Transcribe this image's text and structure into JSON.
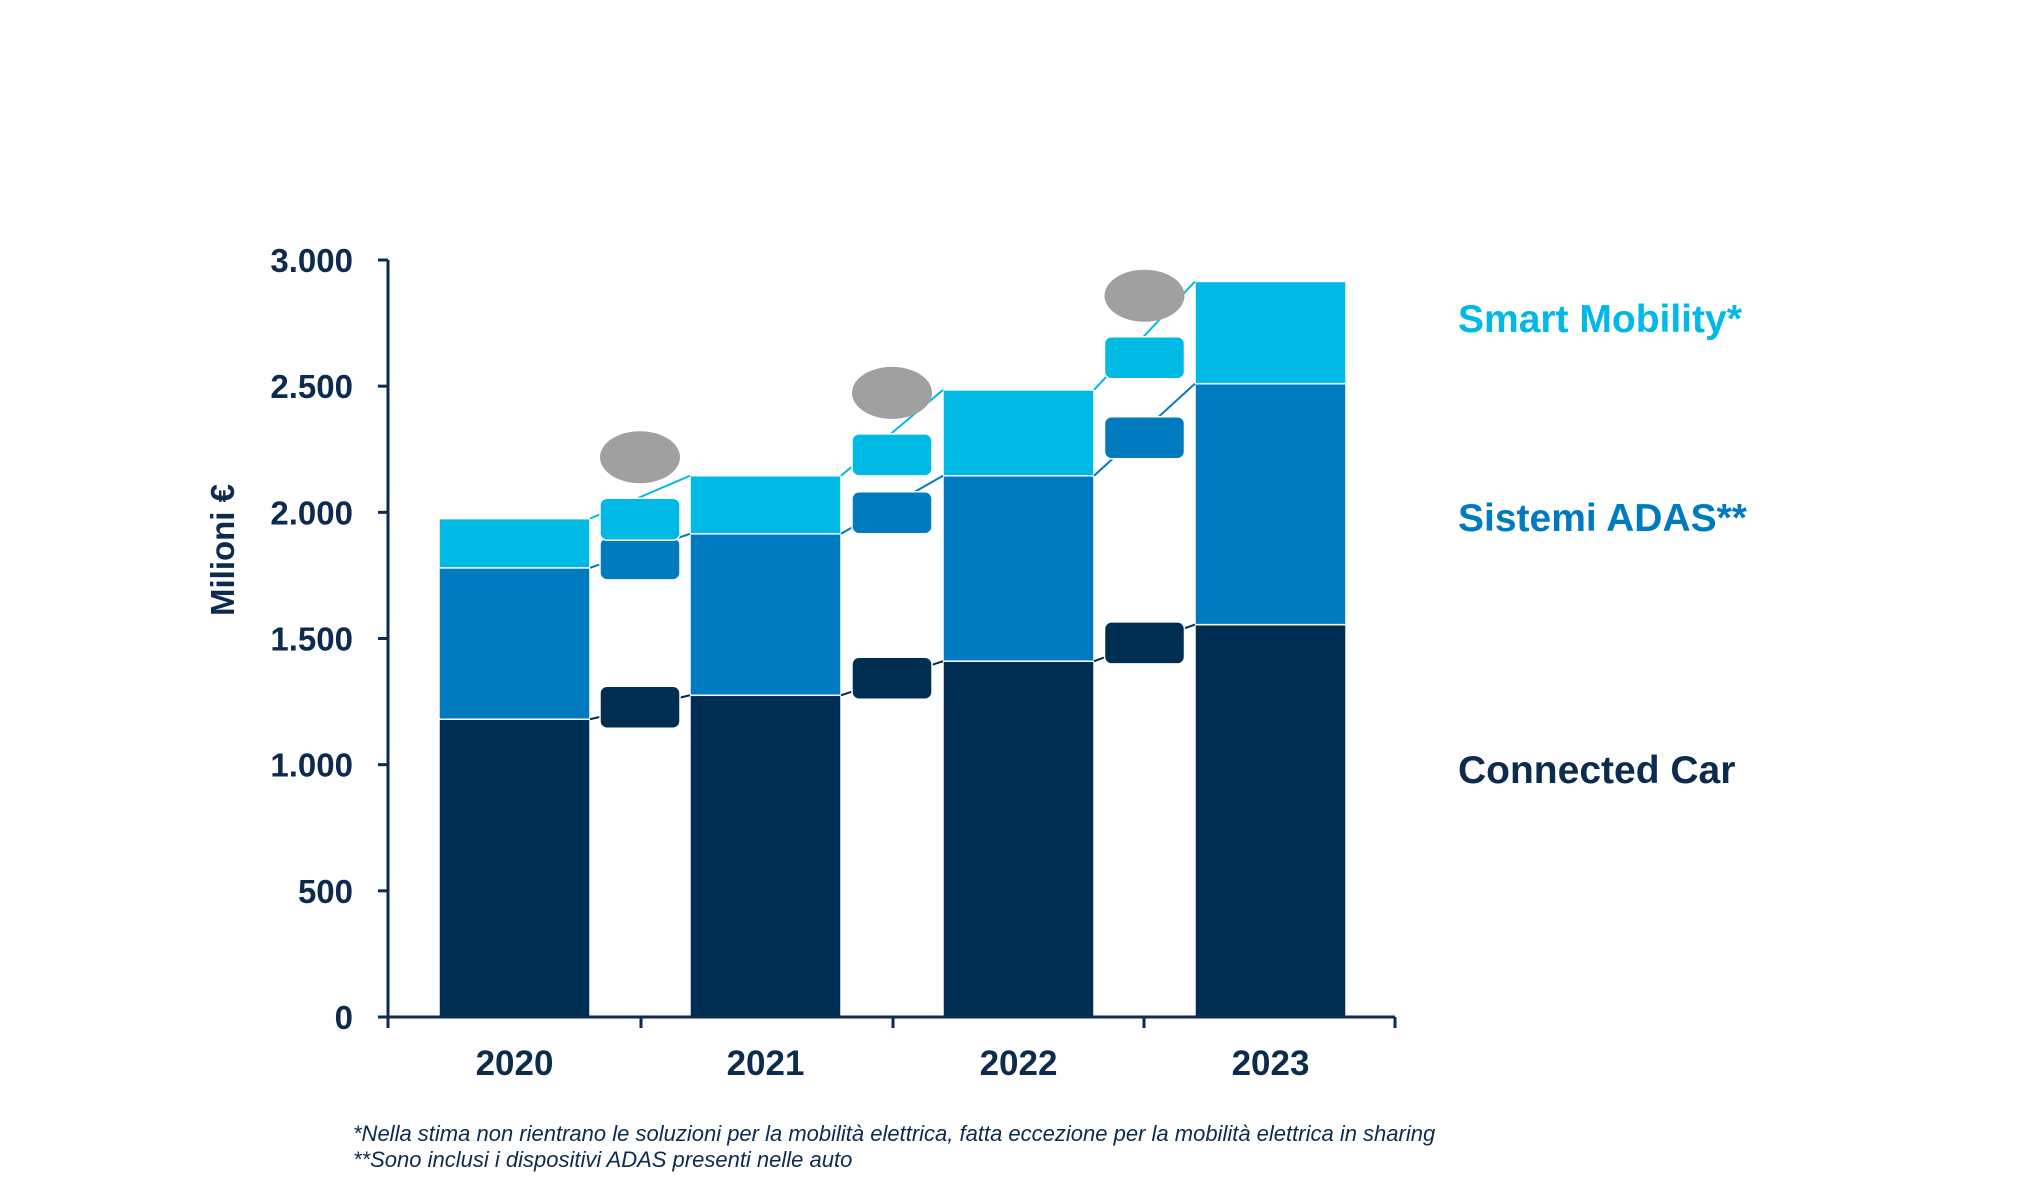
{
  "chart_data": {
    "type": "bar",
    "stacked": true,
    "categories": [
      "2020",
      "2021",
      "2022",
      "2023"
    ],
    "series": [
      {
        "name": "Connected Car",
        "color": "#002d52",
        "values": [
          1180,
          1275,
          1410,
          1555
        ]
      },
      {
        "name": "Sistemi ADAS**",
        "color": "#007bbf",
        "values": [
          600,
          640,
          735,
          955
        ]
      },
      {
        "name": "Smart Mobility*",
        "color": "#00b9e4",
        "values": [
          195,
          230,
          340,
          405
        ]
      }
    ],
    "ylabel": "Milioni €",
    "xlabel": "",
    "ylim": [
      0,
      3000
    ],
    "yticks": [
      0,
      500,
      1000,
      1500,
      2000,
      2500,
      3000
    ],
    "ytick_labels": [
      "0",
      "500",
      "1.000",
      "1.500",
      "2.000",
      "2.500",
      "3.000"
    ],
    "grid": false,
    "legend_placement": "right",
    "connector_label_color": "#a0a0a0",
    "footnotes": [
      "*Nella stima non rientrano le soluzioni per la mobilità elettrica, fatta eccezione per la mobilità elettrica in sharing",
      "**Sono inclusi i dispositivi ADAS presenti nelle auto"
    ]
  }
}
